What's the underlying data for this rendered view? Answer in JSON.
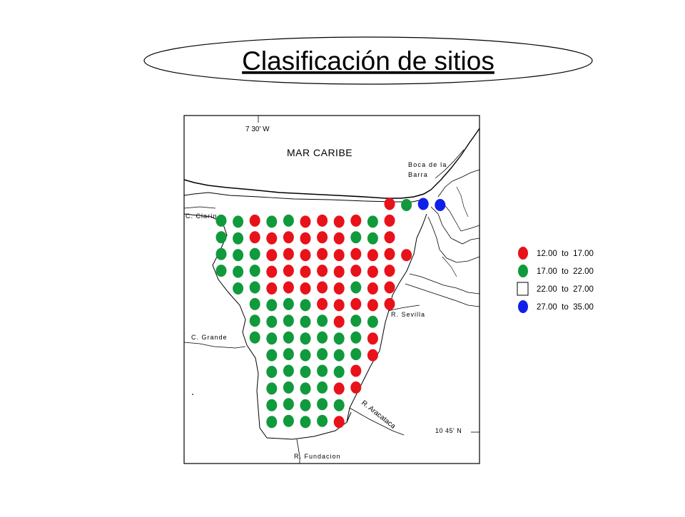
{
  "title": "Clasificación de sitios",
  "map": {
    "labels": {
      "longitude": "7 30' W",
      "sea": "MAR CARIBE",
      "boca_line1": "Boca de la",
      "boca_line2": "Barra",
      "clarin": "C. Clarín",
      "grande": "C. Grande",
      "sevilla": "R. Sevilla",
      "aracataca": "R. Aracataca",
      "latitude": "10 45' N",
      "fundacion": "R. Fundacion"
    }
  },
  "legend": {
    "items": [
      {
        "range": "12.00  to  17.00",
        "color": "#e8121a",
        "shape": "filled-ellipse"
      },
      {
        "range": "17.00  to  22.00",
        "color": "#109a3c",
        "shape": "filled-ellipse"
      },
      {
        "range": "22.00  to  27.00",
        "color": "#ffffff",
        "shape": "empty-square"
      },
      {
        "range": "27.00  to  35.00",
        "color": "#1020e8",
        "shape": "filled-ellipse"
      }
    ]
  },
  "colors": {
    "red": "#e8121a",
    "green": "#109a3c",
    "blue": "#1020e8"
  },
  "sites": {
    "rows": [
      "..........RGBB",
      "GGRGGRRRRGR",
      "GGRRRRRRGGR",
      "GGGRRRRRRRRR",
      "GGGRRRRRRRR",
      ".GGRRRRRGRR",
      "..GGGGRRRRR",
      "..GGGGGRGG",
      "..GGGGGGGR",
      "...GGGGGGR",
      "...GGGGGR",
      "...GGGGRR",
      "...GGGGG",
      "...GGGGR"
    ]
  }
}
